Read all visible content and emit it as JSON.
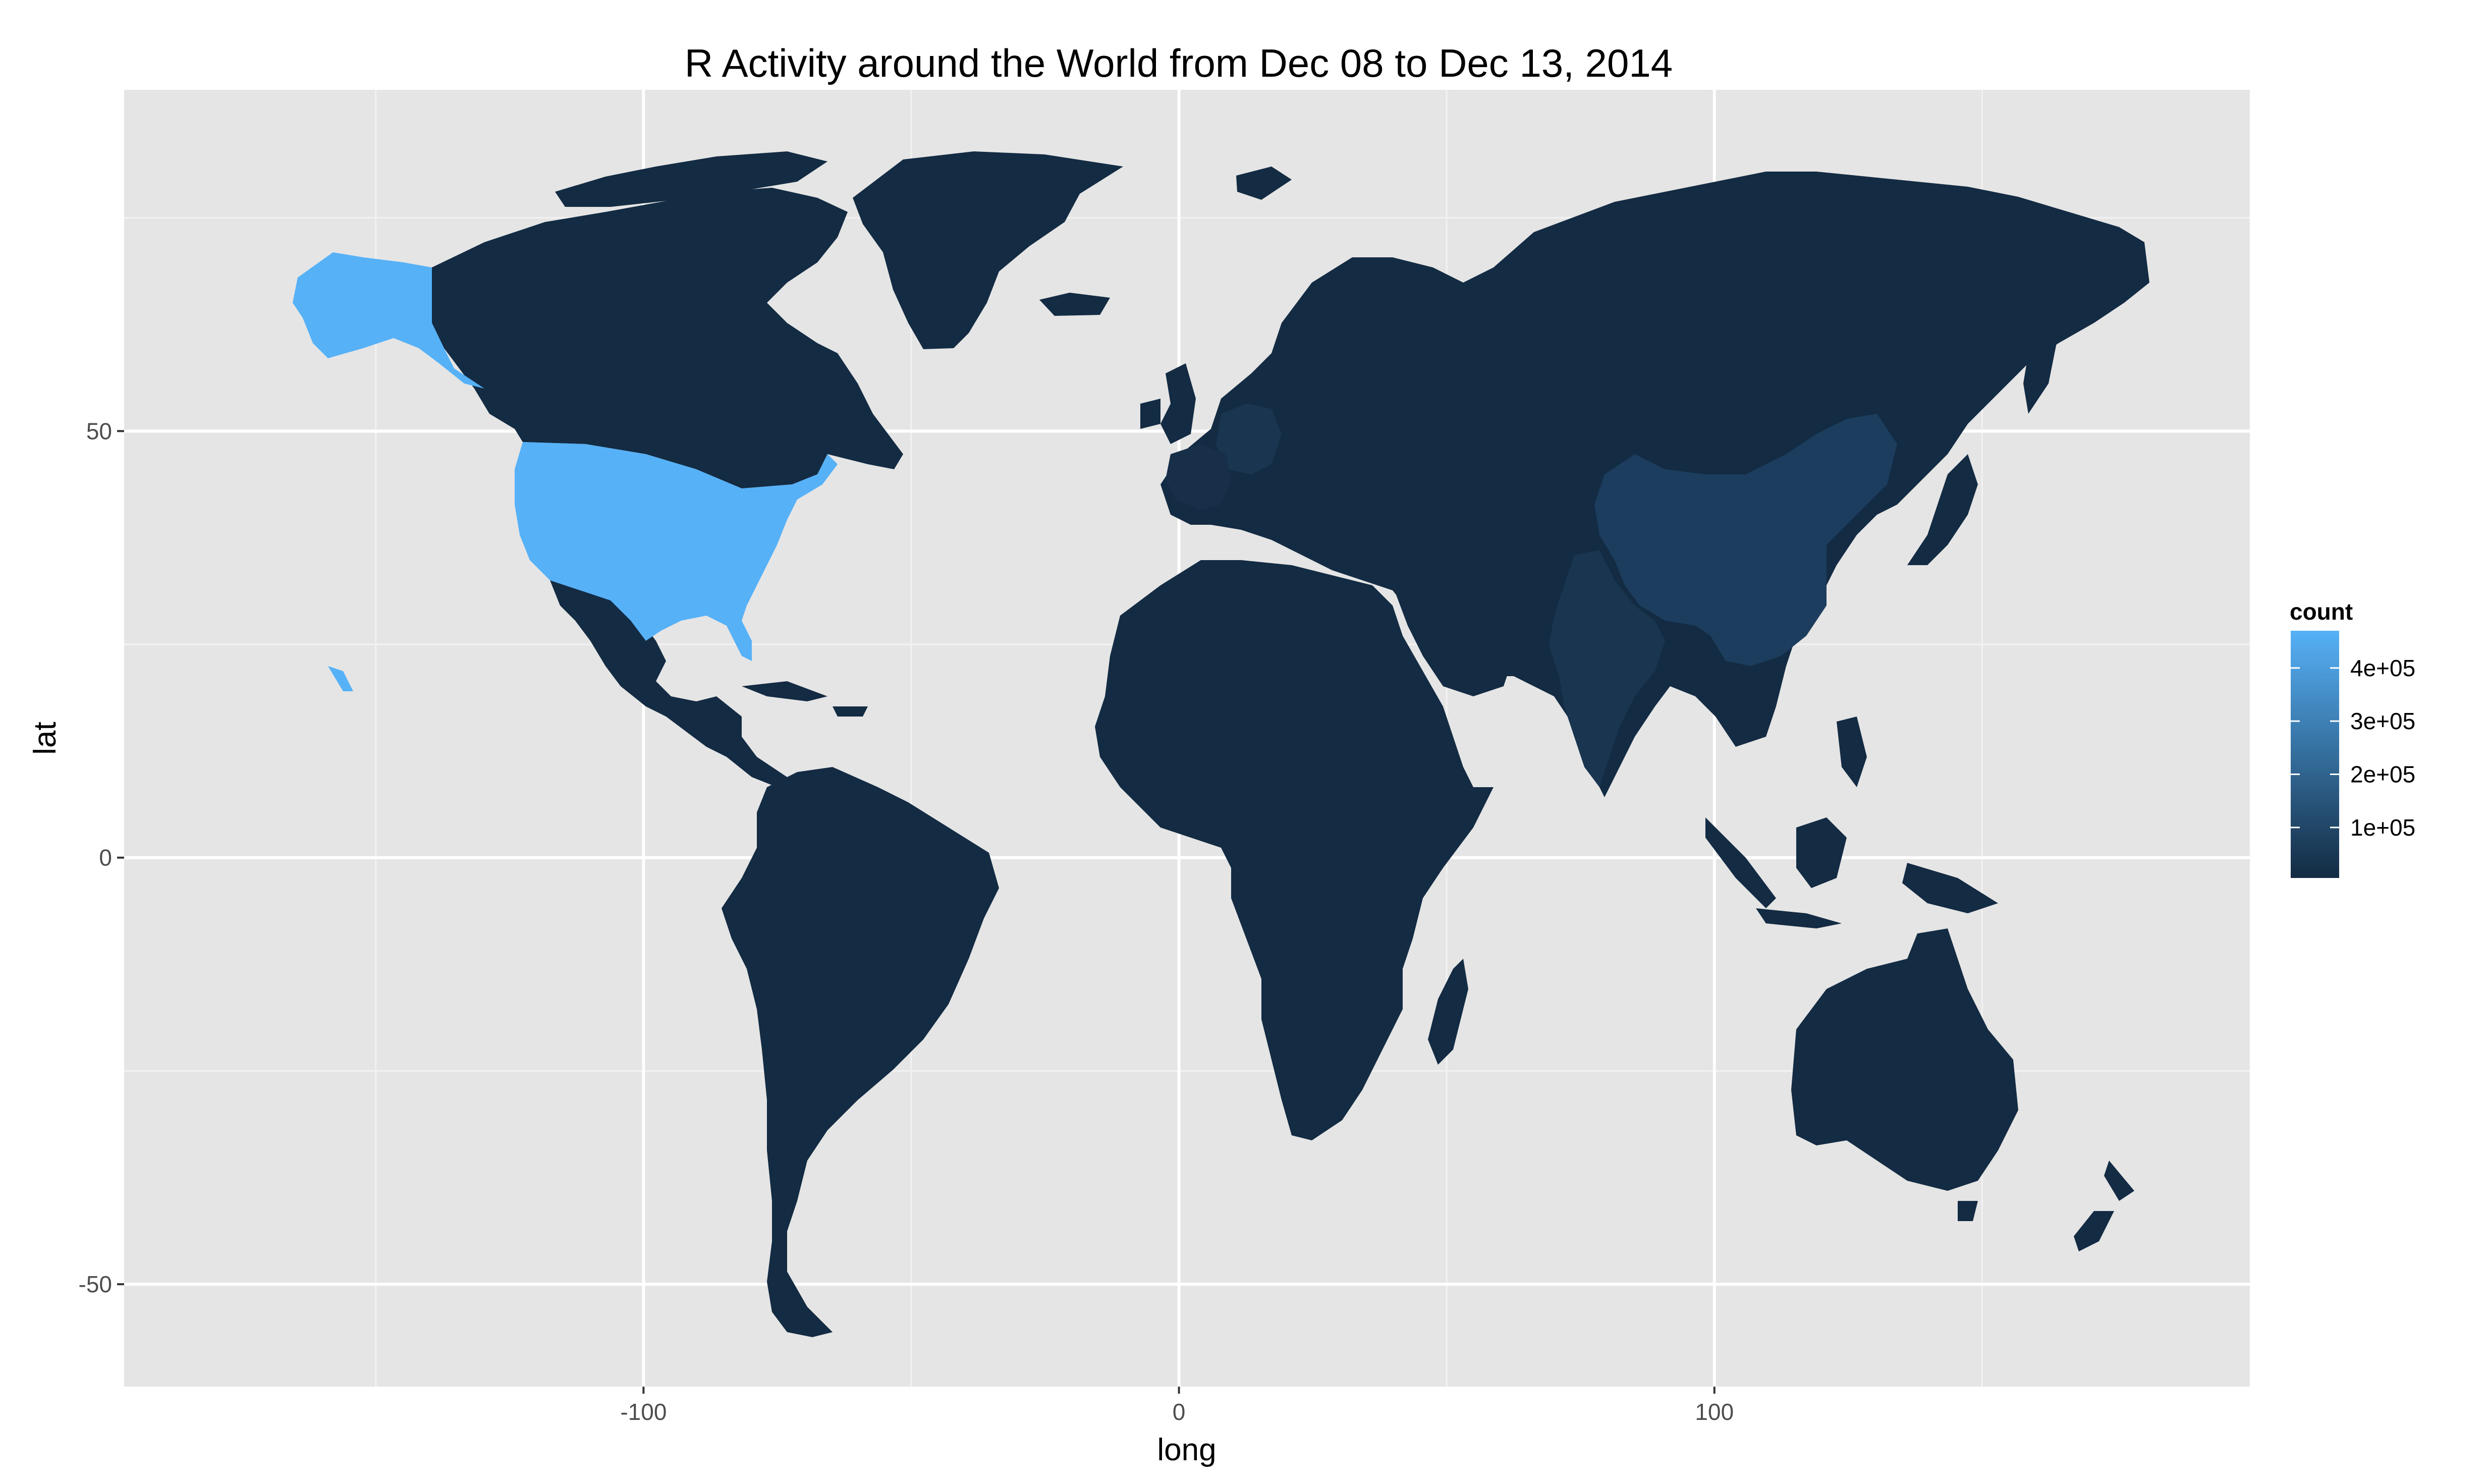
{
  "chart_data": {
    "type": "choropleth-map",
    "title": "R Activity around the World from Dec 08 to Dec 13, 2014",
    "xlabel": "long",
    "ylabel": "lat",
    "xlim": [
      -197,
      200
    ],
    "ylim": [
      -62,
      90
    ],
    "x_ticks": [
      -100,
      0,
      100
    ],
    "y_ticks": [
      -50,
      0,
      50
    ],
    "grid": true,
    "legend": {
      "title": "count",
      "position": "right",
      "ticks": [
        {
          "value": 100000,
          "label": "1e+05"
        },
        {
          "value": 200000,
          "label": "2e+05"
        },
        {
          "value": 300000,
          "label": "3e+05"
        },
        {
          "value": 400000,
          "label": "4e+05"
        }
      ],
      "min": 5000,
      "max": 470000,
      "color_low": "#132B43",
      "color_high": "#56B1F7"
    },
    "colors": {
      "panel_bg": "#E5E5E5",
      "grid_major": "#FFFFFF",
      "grid_minor": "#F2F2F2",
      "axis_text": "#4D4D4D",
      "title_text": "#000000"
    },
    "regions": [
      {
        "name": "USA",
        "count": 460000
      },
      {
        "name": "China",
        "count": 130000
      },
      {
        "name": "India",
        "count": 70000
      },
      {
        "name": "Germany",
        "count": 55000
      },
      {
        "name": "France",
        "count": 40000
      },
      {
        "name": "Other countries",
        "count": 10000
      }
    ]
  }
}
